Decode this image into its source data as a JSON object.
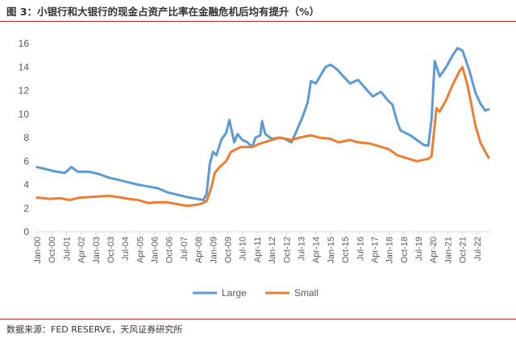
{
  "header": {
    "title": "图 3：小银行和大银行的现金占资产比率在金融危机后均有提升（%）"
  },
  "footer": {
    "source": "数据来源：FED RESERVE，天风证券研究所"
  },
  "colors": {
    "large": "#5B9BD5",
    "small": "#ED7D31",
    "axis": "#595959",
    "rule": "#c62828"
  },
  "chart_data": {
    "type": "line",
    "title": "",
    "xlabel": "",
    "ylabel": "",
    "ylim": [
      0,
      16
    ],
    "yticks": [
      0,
      2,
      4,
      6,
      8,
      10,
      12,
      14,
      16
    ],
    "grid": false,
    "legend_position": "bottom",
    "xlim": [
      "2000-01",
      "2023-04"
    ],
    "xtick_labels": [
      "Jan-00",
      "Oct-00",
      "Jul-01",
      "Apr-02",
      "Jan-03",
      "Oct-03",
      "Jul-04",
      "Apr-05",
      "Jan-06",
      "Oct-06",
      "Jul-07",
      "Apr-08",
      "Jan-09",
      "Oct-09",
      "Jul-10",
      "Apr-11",
      "Jan-12",
      "Oct-12",
      "Jul-13",
      "Apr-14",
      "Jan-15",
      "Oct-15",
      "Jul-16",
      "Apr-17",
      "Jan-18",
      "Oct-18",
      "Jul-19",
      "Apr-20",
      "Jan-21",
      "Oct-21",
      "Jul-22"
    ],
    "series": [
      {
        "name": "Large",
        "color": "#5B9BD5",
        "points": [
          [
            "2000-01",
            5.5
          ],
          [
            "2000-07",
            5.3
          ],
          [
            "2001-01",
            5.1
          ],
          [
            "2001-06",
            5.0
          ],
          [
            "2001-10",
            5.5
          ],
          [
            "2002-02",
            5.1
          ],
          [
            "2002-09",
            5.1
          ],
          [
            "2003-03",
            4.9
          ],
          [
            "2003-09",
            4.6
          ],
          [
            "2004-03",
            4.4
          ],
          [
            "2004-09",
            4.2
          ],
          [
            "2005-03",
            4.0
          ],
          [
            "2005-09",
            3.85
          ],
          [
            "2006-03",
            3.7
          ],
          [
            "2006-09",
            3.35
          ],
          [
            "2007-03",
            3.15
          ],
          [
            "2007-09",
            2.95
          ],
          [
            "2008-03",
            2.8
          ],
          [
            "2008-07",
            2.7
          ],
          [
            "2008-09",
            3.2
          ],
          [
            "2008-11",
            5.8
          ],
          [
            "2009-01",
            6.8
          ],
          [
            "2009-03",
            6.5
          ],
          [
            "2009-06",
            7.8
          ],
          [
            "2009-09",
            8.4
          ],
          [
            "2009-11",
            9.5
          ],
          [
            "2010-02",
            7.6
          ],
          [
            "2010-04",
            8.3
          ],
          [
            "2010-07",
            7.8
          ],
          [
            "2010-10",
            7.6
          ],
          [
            "2011-01",
            7.2
          ],
          [
            "2011-03",
            8.0
          ],
          [
            "2011-06",
            8.2
          ],
          [
            "2011-07",
            9.4
          ],
          [
            "2011-09",
            8.3
          ],
          [
            "2012-01",
            7.9
          ],
          [
            "2012-06",
            8.0
          ],
          [
            "2012-09",
            7.9
          ],
          [
            "2013-01",
            7.6
          ],
          [
            "2013-04",
            8.5
          ],
          [
            "2013-08",
            9.8
          ],
          [
            "2013-11",
            11.0
          ],
          [
            "2014-01",
            12.8
          ],
          [
            "2014-04",
            12.6
          ],
          [
            "2014-07",
            13.3
          ],
          [
            "2014-10",
            14.0
          ],
          [
            "2015-01",
            14.2
          ],
          [
            "2015-05",
            13.8
          ],
          [
            "2015-09",
            13.2
          ],
          [
            "2016-01",
            12.6
          ],
          [
            "2016-06",
            12.9
          ],
          [
            "2016-11",
            12.1
          ],
          [
            "2017-03",
            11.5
          ],
          [
            "2017-08",
            11.9
          ],
          [
            "2017-12",
            11.2
          ],
          [
            "2018-03",
            10.8
          ],
          [
            "2018-06",
            9.3
          ],
          [
            "2018-08",
            8.6
          ],
          [
            "2019-02",
            8.2
          ],
          [
            "2019-06",
            7.8
          ],
          [
            "2019-10",
            7.4
          ],
          [
            "2020-01",
            7.3
          ],
          [
            "2020-03",
            9.5
          ],
          [
            "2020-05",
            14.5
          ],
          [
            "2020-08",
            13.2
          ],
          [
            "2020-12",
            14.0
          ],
          [
            "2021-04",
            15.0
          ],
          [
            "2021-07",
            15.6
          ],
          [
            "2021-10",
            15.4
          ],
          [
            "2022-02",
            13.8
          ],
          [
            "2022-06",
            11.8
          ],
          [
            "2022-09",
            10.9
          ],
          [
            "2022-12",
            10.3
          ],
          [
            "2023-02",
            10.4
          ]
        ]
      },
      {
        "name": "Small",
        "color": "#ED7D31",
        "points": [
          [
            "2000-01",
            2.9
          ],
          [
            "2000-09",
            2.8
          ],
          [
            "2001-03",
            2.85
          ],
          [
            "2001-09",
            2.7
          ],
          [
            "2002-03",
            2.9
          ],
          [
            "2002-09",
            2.95
          ],
          [
            "2003-03",
            3.0
          ],
          [
            "2003-09",
            3.05
          ],
          [
            "2004-03",
            2.95
          ],
          [
            "2004-09",
            2.8
          ],
          [
            "2005-03",
            2.7
          ],
          [
            "2005-09",
            2.45
          ],
          [
            "2006-03",
            2.5
          ],
          [
            "2006-09",
            2.5
          ],
          [
            "2007-03",
            2.35
          ],
          [
            "2007-09",
            2.2
          ],
          [
            "2008-03",
            2.3
          ],
          [
            "2008-06",
            2.4
          ],
          [
            "2008-09",
            2.6
          ],
          [
            "2008-12",
            3.8
          ],
          [
            "2009-02",
            5.0
          ],
          [
            "2009-05",
            5.5
          ],
          [
            "2009-09",
            6.0
          ],
          [
            "2009-12",
            6.8
          ],
          [
            "2010-06",
            7.2
          ],
          [
            "2011-01",
            7.2
          ],
          [
            "2011-06",
            7.5
          ],
          [
            "2012-01",
            7.8
          ],
          [
            "2012-06",
            8.0
          ],
          [
            "2013-01",
            7.8
          ],
          [
            "2013-06",
            8.0
          ],
          [
            "2014-01",
            8.2
          ],
          [
            "2014-06",
            8.0
          ],
          [
            "2015-01",
            7.9
          ],
          [
            "2015-06",
            7.6
          ],
          [
            "2016-01",
            7.8
          ],
          [
            "2016-06",
            7.6
          ],
          [
            "2017-01",
            7.5
          ],
          [
            "2017-06",
            7.3
          ],
          [
            "2018-01",
            7.0
          ],
          [
            "2018-06",
            6.5
          ],
          [
            "2019-01",
            6.2
          ],
          [
            "2019-06",
            6.0
          ],
          [
            "2020-01",
            6.2
          ],
          [
            "2020-03",
            6.4
          ],
          [
            "2020-06",
            10.5
          ],
          [
            "2020-08",
            10.2
          ],
          [
            "2020-12",
            11.2
          ],
          [
            "2021-04",
            12.5
          ],
          [
            "2021-08",
            13.6
          ],
          [
            "2021-10",
            14.0
          ],
          [
            "2022-01",
            12.5
          ],
          [
            "2022-06",
            9.0
          ],
          [
            "2022-09",
            7.6
          ],
          [
            "2022-12",
            6.8
          ],
          [
            "2023-02",
            6.3
          ]
        ]
      }
    ]
  }
}
